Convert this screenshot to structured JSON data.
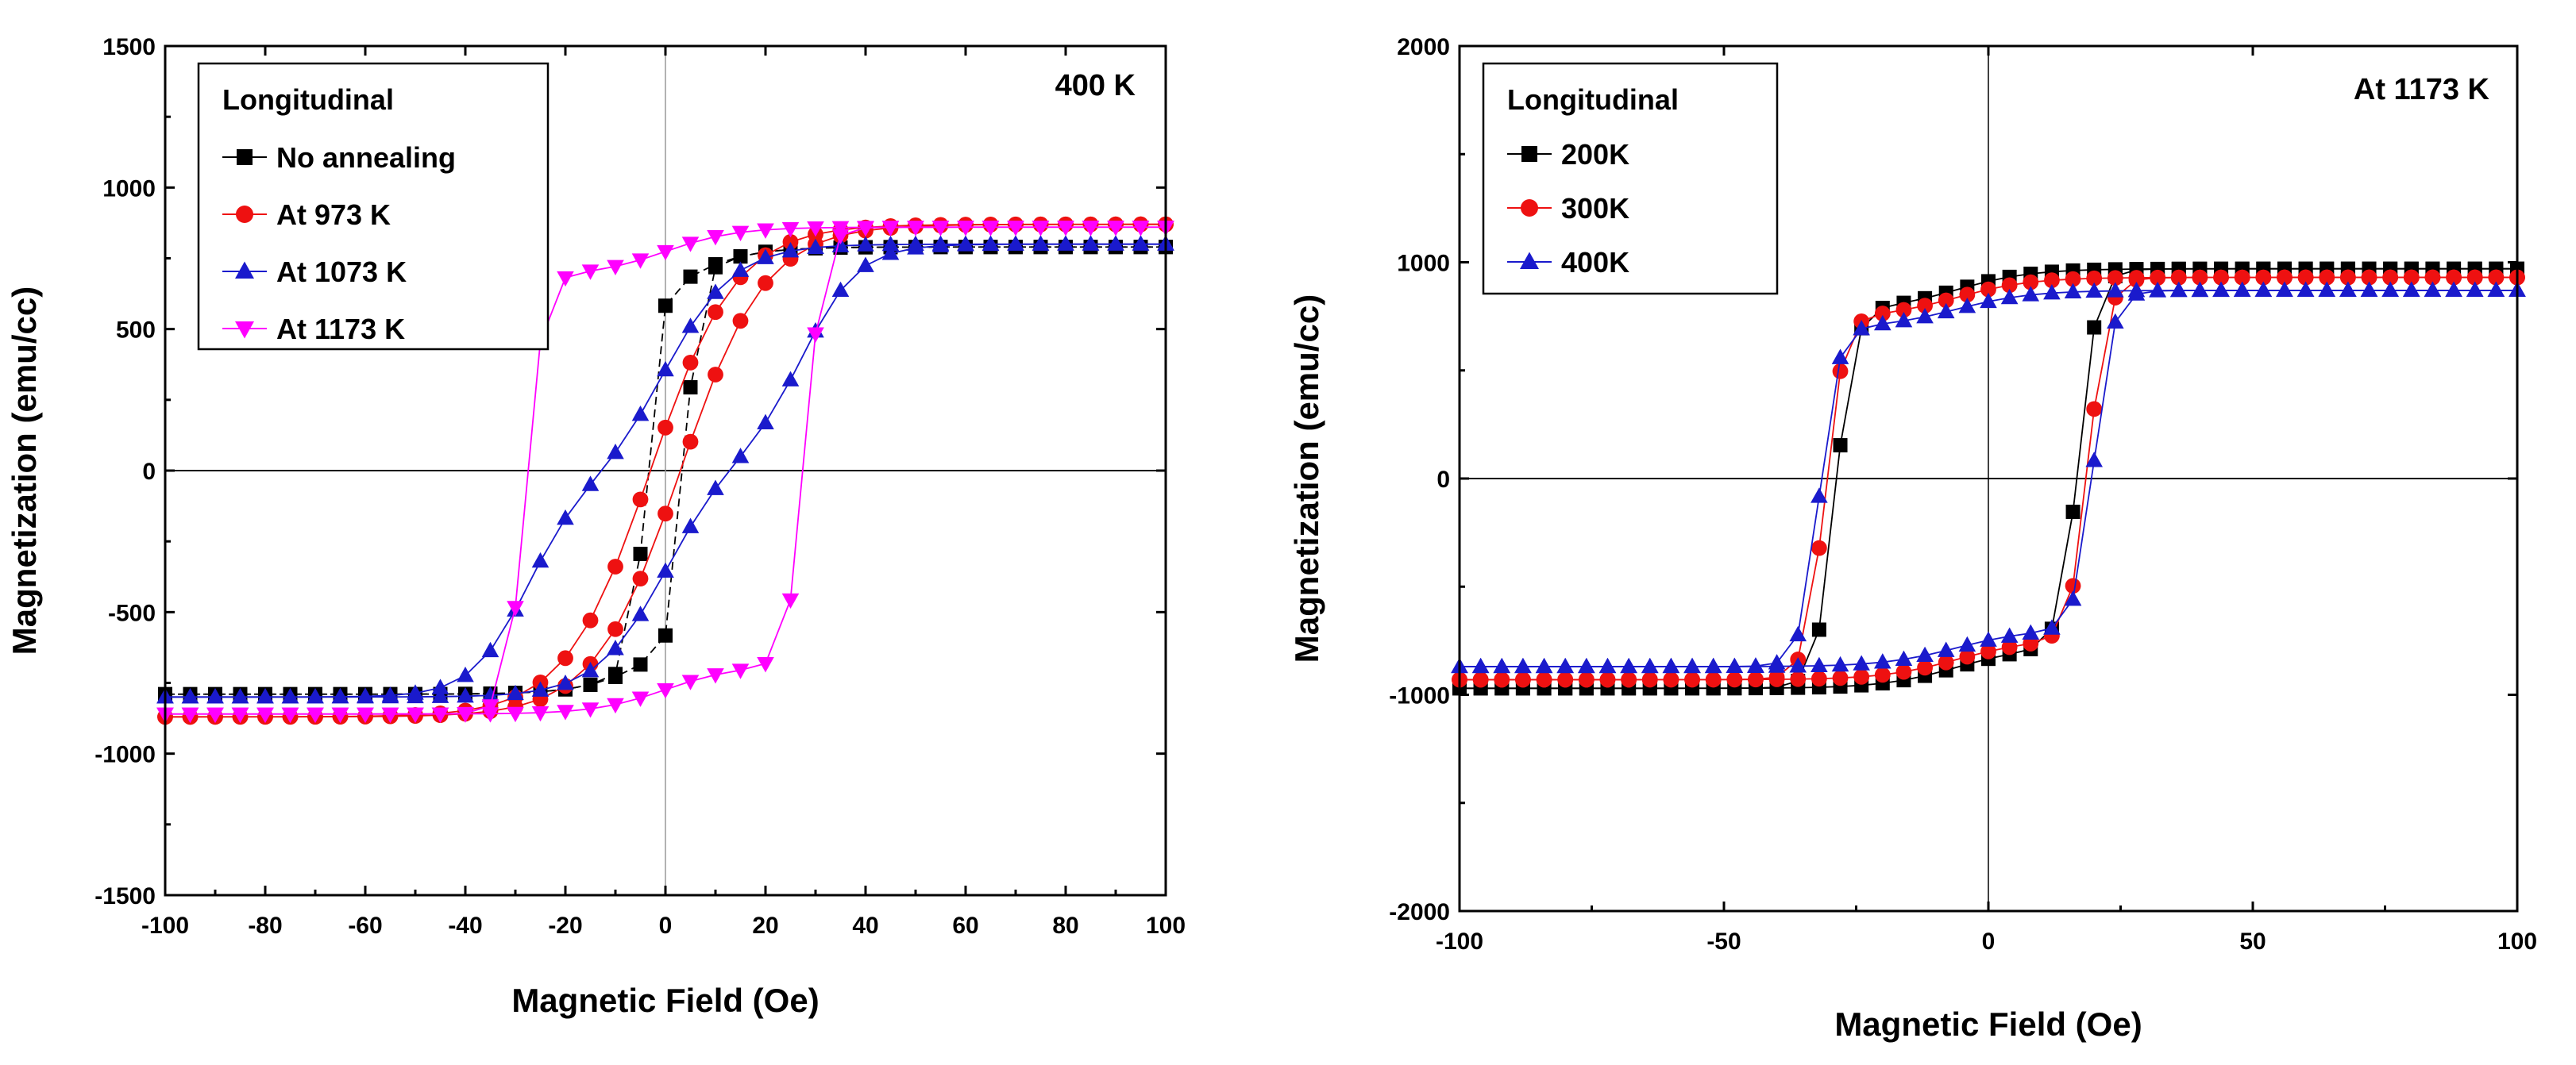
{
  "chart_data": [
    {
      "type": "line",
      "id": "left",
      "annotation": "400 K",
      "xlabel": "Magnetic Field (Oe)",
      "ylabel": "Magnetization (emu/cc)",
      "xlim": [
        -100,
        100
      ],
      "ylim": [
        -1500,
        1500
      ],
      "xticks": [
        -100,
        -80,
        -60,
        -40,
        -20,
        0,
        20,
        40,
        60,
        80,
        100
      ],
      "yticks": [
        -1500,
        -1000,
        -500,
        0,
        500,
        1000,
        1500
      ],
      "grid": false,
      "legend_title": "Longitudinal",
      "legend_position": "top-left",
      "series": [
        {
          "name": "No annealing",
          "marker": "square",
          "color": "#000000",
          "params": {
            "Ms": 790,
            "Hc": 4,
            "w": 2.5,
            "k": 0.2
          }
        },
        {
          "name": "At 973 K",
          "marker": "circle",
          "color": "#ee1111",
          "params": {
            "Ms": 870,
            "Hc": 3,
            "w": 17,
            "k": 0
          }
        },
        {
          "name": "At 1073 K",
          "marker": "triangle-up",
          "color": "#1a1acc",
          "params": {
            "Ms": 800,
            "Hc": 28,
            "w": 11,
            "k": 0.55
          }
        },
        {
          "name": "At 1173 K",
          "marker": "triangle-down",
          "color": "#ff00ff",
          "params": {
            "Ms": 860,
            "Hc": 28,
            "w": 3.5,
            "k": 0.1
          }
        }
      ]
    },
    {
      "type": "line",
      "id": "right",
      "annotation": "At 1173 K",
      "xlabel": "Magnetic Field (Oe)",
      "ylabel": "Magnetization (emu/cc)",
      "xlim": [
        -100,
        100
      ],
      "ylim": [
        -2000,
        2000
      ],
      "xticks": [
        -100,
        -50,
        0,
        50,
        100
      ],
      "yticks": [
        -2000,
        -1000,
        0,
        1000,
        2000
      ],
      "grid": false,
      "legend_title": "Longitudinal",
      "legend_position": "top-left",
      "series": [
        {
          "name": "200K",
          "marker": "square",
          "color": "#000000",
          "params": {
            "Ms": 970,
            "Hc": 23,
            "off": -6,
            "w": 3.5,
            "k": 0.1
          }
        },
        {
          "name": "300K",
          "marker": "circle",
          "color": "#ee1111",
          "params": {
            "Ms": 930,
            "Hc": 25,
            "off": -6,
            "w": 3.5,
            "k": 0.1
          }
        },
        {
          "name": "400K",
          "marker": "triangle-up",
          "color": "#1a1acc",
          "params": {
            "Ms": 870,
            "Hc": 26,
            "off": -6,
            "w": 3.5,
            "k": 0.1
          }
        }
      ]
    }
  ]
}
